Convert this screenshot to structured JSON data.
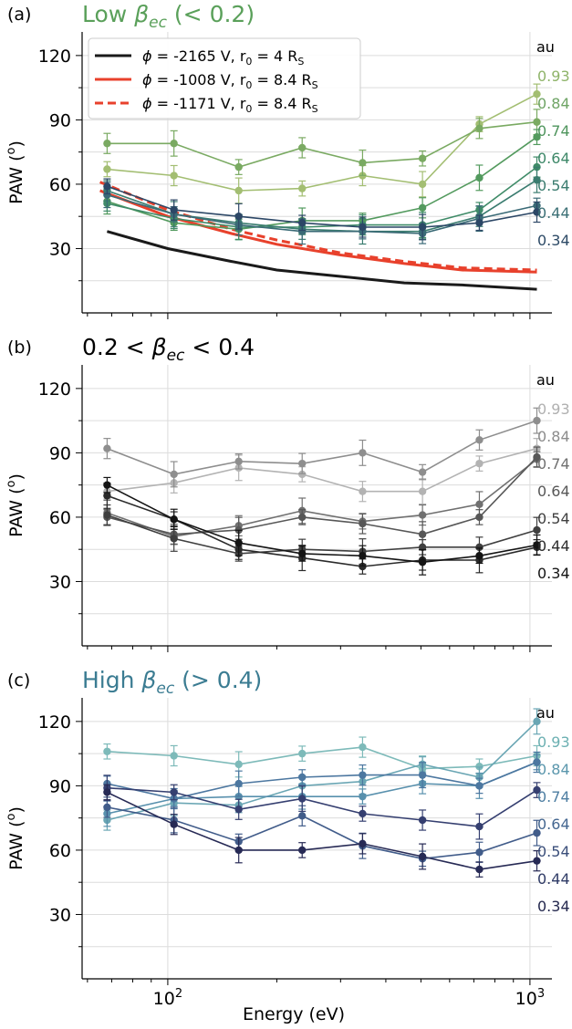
{
  "figure": {
    "xlabel": "Energy (eV)",
    "x_ticks": [
      {
        "value": 100,
        "base": "10",
        "exp": "2"
      },
      {
        "value": 1000,
        "base": "10",
        "exp": "3"
      }
    ],
    "distance_unit": "au",
    "distances": [
      "0.93",
      "0.84",
      "0.74",
      "0.64",
      "0.54",
      "0.44",
      "0.34"
    ]
  },
  "chart_data": [
    {
      "type": "line",
      "panel_label": "(a)",
      "title": "Low β_ec (< 0.2)",
      "title_parts": {
        "pre": "Low ",
        "sym": "β",
        "sub": "ec",
        "post": " (< 0.2)"
      },
      "title_color": "#5aa05a",
      "ylabel": "PAW (o)",
      "ylabel_parts": {
        "pre": "PAW (",
        "sup": "o",
        "post": ")"
      },
      "xlabel": "",
      "x_scale": "log",
      "xlim": [
        58,
        1150
      ],
      "ylim": [
        0,
        131
      ],
      "yticks": [
        30,
        60,
        90,
        120
      ],
      "grid": true,
      "legend_placement": "top-left",
      "x": [
        68,
        104,
        157,
        235,
        345,
        505,
        725,
        1045
      ],
      "label_colors": [
        "#8fb46a",
        "#6fa465",
        "#4f955d",
        "#3d8868",
        "#3b7c6f",
        "#3b6f75",
        "#2d4a66"
      ],
      "series": [
        {
          "label": "0.93",
          "color": "#a3be72",
          "values": [
            67,
            64,
            57,
            58,
            64,
            60,
            88,
            102
          ]
        },
        {
          "label": "0.84",
          "color": "#7aaa62",
          "values": [
            79,
            79,
            68,
            77,
            70,
            72,
            86,
            89
          ]
        },
        {
          "label": "0.74",
          "color": "#539a5e",
          "values": [
            52,
            42,
            39,
            43,
            43,
            49,
            63,
            82
          ]
        },
        {
          "label": "0.64",
          "color": "#3f8b68",
          "values": [
            51,
            44,
            40,
            40,
            41,
            41,
            48,
            68
          ]
        },
        {
          "label": "0.54",
          "color": "#3a7c6f",
          "values": [
            57,
            46,
            42,
            39,
            38,
            38,
            45,
            62
          ]
        },
        {
          "label": "0.44",
          "color": "#3a6a76",
          "values": [
            55,
            46,
            41,
            38,
            38,
            37,
            44,
            50
          ]
        },
        {
          "label": "0.34",
          "color": "#2c4766",
          "values": [
            59,
            48,
            45,
            42,
            40,
            40,
            42,
            47
          ]
        }
      ],
      "models": [
        {
          "name": "ϕ = -2165 V, r0 = 4 RS",
          "phi": "ϕ",
          "text": " = -2165 V, r",
          "sub0": "0",
          "text2": " = 4 R",
          "subS": "S",
          "color": "#1a1a1a",
          "dash": false,
          "x": [
            68,
            100,
            150,
            200,
            300,
            450,
            650,
            1045
          ],
          "values": [
            38,
            30,
            24,
            20,
            17,
            14,
            13,
            11
          ]
        },
        {
          "name": "ϕ = -1008 V, r0 = 8.4 RS",
          "phi": "ϕ",
          "text": " = -1008 V, r",
          "sub0": "0",
          "text2": " = 8.4 R",
          "subS": "S",
          "color": "#e8412c",
          "dash": false,
          "x": [
            65,
            100,
            150,
            200,
            300,
            450,
            650,
            1045
          ],
          "values": [
            57,
            45,
            37,
            32,
            27,
            23,
            20,
            19
          ]
        },
        {
          "name": "ϕ = -1171 V, r0 = 8.4 RS",
          "phi": "ϕ",
          "text": " = -1171 V, r",
          "sub0": "0",
          "text2": " = 8.4 R",
          "subS": "S",
          "color": "#e8412c",
          "dash": true,
          "x": [
            65,
            100,
            150,
            200,
            300,
            450,
            650,
            1045
          ],
          "values": [
            61,
            48,
            39,
            34,
            28,
            24,
            21,
            20
          ]
        }
      ]
    },
    {
      "type": "line",
      "panel_label": "(b)",
      "title": "0.2 < β_ec < 0.4",
      "title_parts": {
        "pre": "0.2 < ",
        "sym": "β",
        "sub": "ec",
        "post": " < 0.4"
      },
      "title_color": "#000000",
      "ylabel": "PAW (o)",
      "ylabel_parts": {
        "pre": "PAW (",
        "sup": "o",
        "post": ")"
      },
      "xlabel": "",
      "x_scale": "log",
      "xlim": [
        58,
        1150
      ],
      "ylim": [
        0,
        131
      ],
      "yticks": [
        30,
        60,
        90,
        120
      ],
      "grid": true,
      "x": [
        68,
        104,
        157,
        235,
        345,
        505,
        725,
        1045
      ],
      "label_colors": [
        "#b0b0b0",
        "#8c8c8c",
        "#707070",
        "#575757",
        "#404040",
        "#2b2b2b",
        "#141414"
      ],
      "series": [
        {
          "label": "0.93",
          "color": "#b3b3b3",
          "values": [
            72,
            76,
            83,
            80,
            72,
            72,
            85,
            92
          ]
        },
        {
          "label": "0.84",
          "color": "#8e8e8e",
          "values": [
            92,
            80,
            86,
            85,
            90,
            81,
            96,
            105
          ]
        },
        {
          "label": "0.74",
          "color": "#707070",
          "values": [
            62,
            51,
            56,
            63,
            58,
            61,
            66,
            87
          ]
        },
        {
          "label": "0.64",
          "color": "#575757",
          "values": [
            60,
            52,
            54,
            60,
            57,
            52,
            60,
            88
          ]
        },
        {
          "label": "0.54",
          "color": "#3f3f3f",
          "values": [
            61,
            50,
            43,
            45,
            44,
            46,
            46,
            54
          ]
        },
        {
          "label": "0.44",
          "color": "#2a2a2a",
          "values": [
            70,
            59,
            45,
            41,
            37,
            40,
            40,
            46
          ]
        },
        {
          "label": "0.34",
          "color": "#141414",
          "values": [
            75,
            59,
            48,
            43,
            42,
            39,
            42,
            47
          ]
        }
      ]
    },
    {
      "type": "line",
      "panel_label": "(c)",
      "title": "High β_ec (> 0.4)",
      "title_parts": {
        "pre": "High ",
        "sym": "β",
        "sub": "ec",
        "post": " (> 0.4)"
      },
      "title_color": "#3b7c92",
      "ylabel": "PAW (o)",
      "ylabel_parts": {
        "pre": "PAW (",
        "sup": "o",
        "post": ")"
      },
      "xlabel": "Energy (eV)",
      "x_scale": "log",
      "xlim": [
        58,
        1150
      ],
      "ylim": [
        0,
        131
      ],
      "yticks": [
        30,
        60,
        90,
        120
      ],
      "grid": true,
      "x": [
        68,
        104,
        157,
        235,
        345,
        505,
        725,
        1045
      ],
      "label_colors": [
        "#6cb0b2",
        "#5b97ad",
        "#4e7ea2",
        "#446690",
        "#3a4e7a",
        "#2f3b66",
        "#24284e"
      ],
      "series": [
        {
          "label": "0.93",
          "color": "#7dbab9",
          "values": [
            106,
            104,
            100,
            105,
            108,
            98,
            99,
            104
          ]
        },
        {
          "label": "0.84",
          "color": "#6aa6b4",
          "values": [
            74,
            82,
            81,
            90,
            92,
            100,
            94,
            120
          ]
        },
        {
          "label": "0.74",
          "color": "#5890ad",
          "values": [
            77,
            84,
            85,
            85,
            85,
            91,
            90,
            101
          ]
        },
        {
          "label": "0.64",
          "color": "#4c77a0",
          "values": [
            91,
            84,
            91,
            94,
            95,
            95,
            90,
            101
          ]
        },
        {
          "label": "0.54",
          "color": "#415c8a",
          "values": [
            80,
            74,
            64,
            76,
            62,
            56,
            59,
            68
          ]
        },
        {
          "label": "0.44",
          "color": "#353f70",
          "values": [
            89,
            87,
            79,
            84,
            77,
            74,
            71,
            88
          ]
        },
        {
          "label": "0.34",
          "color": "#272a55",
          "values": [
            87,
            72,
            60,
            60,
            63,
            57,
            51,
            55
          ]
        }
      ]
    }
  ]
}
